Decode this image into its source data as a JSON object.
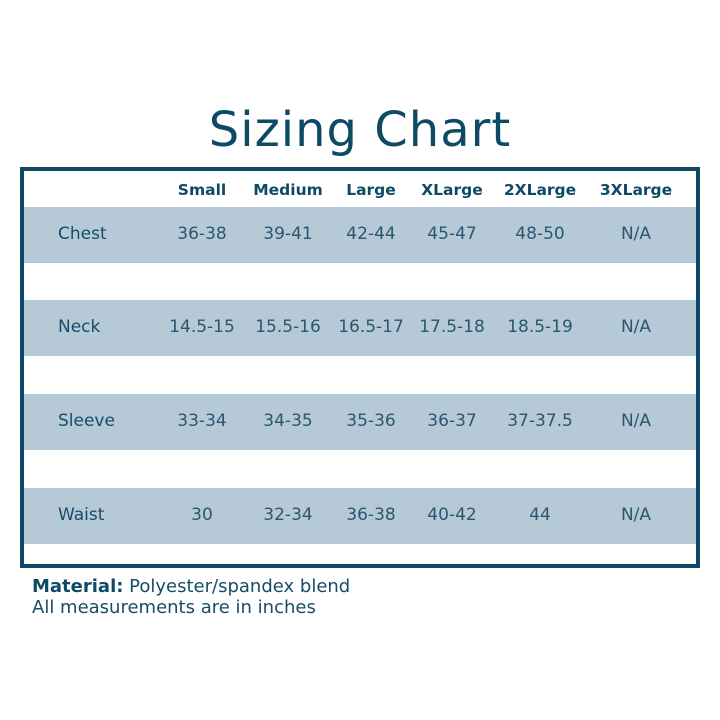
{
  "title": "Sizing Chart",
  "columns": [
    "Small",
    "Medium",
    "Large",
    "XLarge",
    "2XLarge",
    "3XLarge"
  ],
  "rows": [
    {
      "label": "Chest",
      "values": [
        "36-38",
        "39-41",
        "42-44",
        "45-47",
        "48-50",
        "N/A"
      ]
    },
    {
      "label": "Neck",
      "values": [
        "14.5-15",
        "15.5-16",
        "16.5-17",
        "17.5-18",
        "18.5-19",
        "N/A"
      ]
    },
    {
      "label": "Sleeve",
      "values": [
        "33-34",
        "34-35",
        "35-36",
        "36-37",
        "37-37.5",
        "N/A"
      ]
    },
    {
      "label": "Waist",
      "values": [
        "30",
        "32-34",
        "36-38",
        "40-42",
        "44",
        "N/A"
      ]
    }
  ],
  "notes": {
    "material_label": "Material:",
    "material_value": "Polyester/spandex blend",
    "units": "All measurements are in inches"
  },
  "colors": {
    "primary": "#0e4a66",
    "row_shade": "#b5cad6"
  }
}
